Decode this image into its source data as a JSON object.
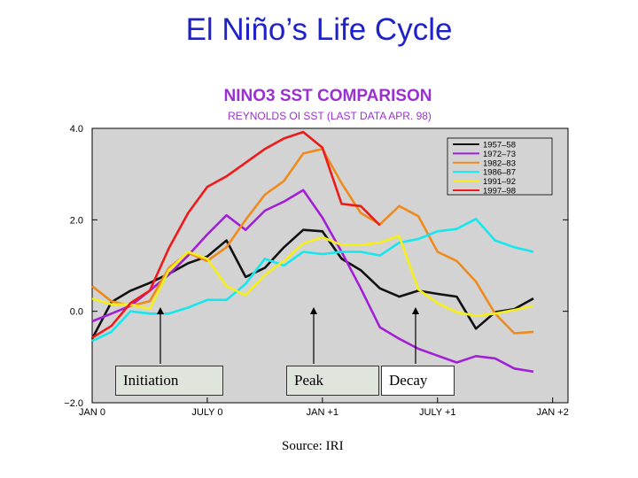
{
  "slide": {
    "title": "El Niño’s Life Cycle",
    "source": "Source:  IRI"
  },
  "phases": [
    "Initiation",
    "Peak",
    "Decay"
  ],
  "colors": {
    "title": "#1f22c8",
    "plot_bg": "#d3d3d3",
    "label_box_bg": "#dfe4dd",
    "label_box_bg_decay": "#ffffff"
  },
  "chart_data": {
    "type": "line",
    "title": "NINO3 SST COMPARISON",
    "subtitle": "REYNOLDS OI SST (LAST DATA APR. 98)",
    "xlabel": "",
    "ylabel": "",
    "x_ticks": [
      {
        "value": 0,
        "label": "JAN 0"
      },
      {
        "value": 6,
        "label": "JULY 0"
      },
      {
        "value": 12,
        "label": "JAN +1"
      },
      {
        "value": 18,
        "label": "JULY +1"
      },
      {
        "value": 24,
        "label": "JAN +2"
      }
    ],
    "y_ticks": [
      {
        "value": -2,
        "label": "−2.0"
      },
      {
        "value": 0,
        "label": "0.0"
      },
      {
        "value": 2,
        "label": "2.0"
      },
      {
        "value": 4,
        "label": "4.0"
      }
    ],
    "xlim": [
      0,
      24.8
    ],
    "ylim": [
      -2,
      4
    ],
    "x": [
      0,
      1,
      2,
      3,
      4,
      5,
      6,
      7,
      8,
      9,
      10,
      11,
      12,
      13,
      14,
      15,
      16,
      17,
      18,
      19,
      20,
      21,
      22,
      23,
      24
    ],
    "series": [
      {
        "name": "1957–58",
        "color": "#111111",
        "values": [
          -0.6,
          0.2,
          0.45,
          0.62,
          0.82,
          1.05,
          1.2,
          1.55,
          0.75,
          0.95,
          1.4,
          1.78,
          1.75,
          1.15,
          0.9,
          0.5,
          0.32,
          0.45,
          0.38,
          0.32,
          -0.38,
          -0.02,
          0.05,
          0.28,
          null
        ]
      },
      {
        "name": "1972–73",
        "color": "#a21fd6",
        "values": [
          -0.22,
          -0.05,
          0.12,
          0.45,
          0.8,
          1.22,
          1.68,
          2.1,
          1.78,
          2.2,
          2.4,
          2.65,
          2.05,
          1.3,
          0.5,
          -0.35,
          -0.6,
          -0.82,
          -0.97,
          -1.12,
          -0.98,
          -1.03,
          -1.25,
          -1.32,
          null
        ]
      },
      {
        "name": "1982–83",
        "color": "#ef8b1c",
        "values": [
          0.55,
          0.22,
          0.12,
          0.22,
          0.95,
          1.28,
          1.1,
          1.4,
          2.0,
          2.55,
          2.85,
          3.45,
          3.55,
          2.8,
          2.15,
          1.9,
          2.3,
          2.08,
          1.3,
          1.1,
          0.65,
          -0.05,
          -0.48,
          -0.45,
          null
        ]
      },
      {
        "name": "1986–87",
        "color": "#16e6ee",
        "values": [
          -0.65,
          -0.45,
          0.0,
          -0.05,
          -0.05,
          0.08,
          0.25,
          0.25,
          0.6,
          1.15,
          1.0,
          1.3,
          1.25,
          1.3,
          1.3,
          1.22,
          1.5,
          1.58,
          1.75,
          1.8,
          2.02,
          1.55,
          1.4,
          1.3,
          null
        ]
      },
      {
        "name": "1991–92",
        "color": "#f5ee18",
        "values": [
          0.28,
          0.15,
          0.15,
          0.05,
          0.9,
          1.3,
          1.15,
          0.55,
          0.35,
          0.8,
          1.1,
          1.48,
          1.62,
          1.45,
          1.45,
          1.5,
          1.65,
          0.48,
          0.18,
          -0.02,
          -0.1,
          -0.05,
          0.03,
          0.12,
          null
        ]
      },
      {
        "name": "1997–98",
        "color": "#ee1a1a",
        "values": [
          -0.58,
          -0.32,
          0.18,
          0.45,
          1.38,
          2.15,
          2.72,
          2.95,
          3.25,
          3.55,
          3.78,
          3.92,
          3.58,
          2.35,
          2.3,
          1.88,
          null,
          null,
          null,
          null,
          null,
          null,
          null,
          null,
          null
        ]
      }
    ],
    "grid": false,
    "legend_position": "top-right"
  }
}
